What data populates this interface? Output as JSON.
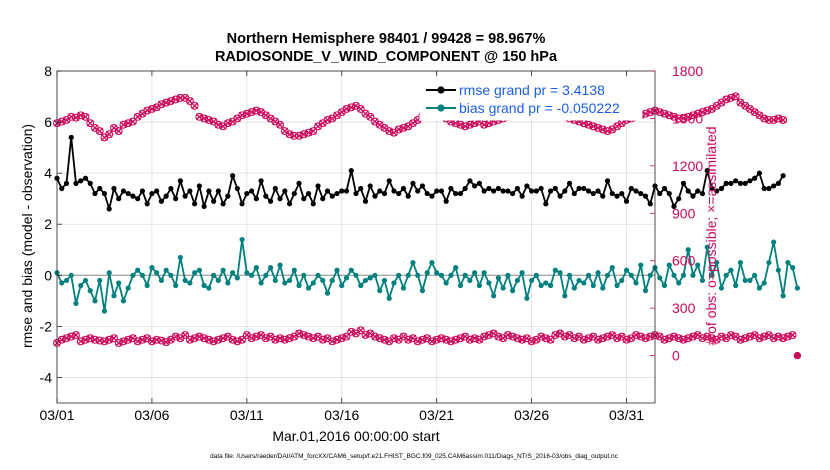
{
  "chart_data": {
    "type": "line",
    "title_line1": "Northern Hemisphere 98401 / 99428 = 98.967%",
    "title_line2": "RADIOSONDE_V_WIND_COMPONENT @ 150 hPa",
    "xlabel": "Mar.01,2016 00:00:00 start",
    "ylabel_left": "rmse and bias (model - observation)",
    "ylabel_right": "# of obs: o=possible; ×=assimilated",
    "footer": "data file: /Users/raeder/DAI/ATM_forcXX/CAM6_setup/f.e21.FHIST_BGC.f09_025.CAM6assim.011/Diags_NTrS_2016-03/obs_diag_output.nc",
    "xlim": [
      0,
      31.5
    ],
    "ylim_left": [
      -5,
      8
    ],
    "ylim_right": [
      -300,
      1800
    ],
    "x_ticks": [
      0,
      5,
      10,
      15,
      20,
      25,
      30
    ],
    "x_tick_labels": [
      "03/01",
      "03/06",
      "03/11",
      "03/16",
      "03/21",
      "03/26",
      "03/31"
    ],
    "y_left_ticks": [
      "-4",
      "-2",
      "0",
      "2",
      "4",
      "6",
      "8"
    ],
    "y_right_ticks": [
      "0",
      "300",
      "600",
      "900",
      "1200",
      "1500",
      "1800"
    ],
    "legend": [
      {
        "label": "rmse grand pr = 3.4138",
        "color": "#000000"
      },
      {
        "label": "bias grand pr = -0.050222",
        "color": "#00807f"
      }
    ],
    "colors": {
      "rmse": "#000000",
      "bias": "#00807f",
      "obs": "#cc0a5c",
      "zero_line": "#aaaaaa"
    },
    "series": [
      {
        "name": "rmse",
        "axis": "left",
        "values": [
          3.8,
          3.4,
          3.6,
          5.4,
          3.6,
          3.7,
          3.8,
          3.6,
          3.2,
          3.4,
          3.2,
          2.6,
          3.4,
          3.0,
          3.3,
          3.2,
          3.1,
          3.0,
          3.3,
          2.8,
          3.2,
          3.3,
          2.9,
          3.1,
          3.4,
          3.0,
          3.7,
          3.1,
          3.3,
          2.8,
          3.5,
          2.7,
          3.3,
          2.9,
          3.3,
          2.8,
          3.1,
          3.9,
          3.4,
          2.8,
          3.2,
          3.3,
          3.0,
          3.7,
          3.1,
          2.9,
          3.4,
          3.0,
          3.3,
          2.8,
          3.2,
          3.6,
          3.0,
          3.2,
          2.8,
          3.5,
          3.0,
          3.3,
          3.1,
          3.2,
          3.3,
          3.3,
          4.1,
          3.2,
          3.4,
          2.9,
          3.5,
          3.1,
          3.3,
          3.2,
          3.7,
          3.3,
          3.2,
          3.4,
          3.1,
          3.6,
          3.3,
          3.5,
          3.2,
          3.1,
          3.3,
          3.3,
          2.9,
          3.4,
          3.2,
          3.2,
          3.4,
          3.7,
          3.5,
          3.6,
          3.3,
          3.4,
          3.3,
          3.4,
          3.3,
          3.3,
          3.2,
          3.4,
          3.1,
          3.5,
          3.3,
          3.3,
          3.4,
          2.8,
          3.3,
          3.4,
          3.1,
          3.3,
          3.6,
          3.2,
          3.4,
          3.4,
          3.3,
          3.2,
          3.3,
          3.1,
          3.7,
          3.2,
          3.1,
          3.2,
          2.9,
          3.4,
          3.3,
          3.2,
          3.1,
          2.8,
          3.5,
          3.2,
          3.4,
          3.2,
          2.7,
          3.0,
          3.6,
          3.3,
          3.1,
          3.3,
          3.2,
          4.1,
          3.4,
          3.3,
          3.4,
          3.6,
          3.6,
          3.7,
          3.6,
          3.6,
          3.7,
          3.8,
          4.0,
          3.4,
          3.4,
          3.5,
          3.6,
          3.9
        ]
      },
      {
        "name": "bias",
        "axis": "left",
        "values": [
          0.1,
          -0.3,
          -0.2,
          0.0,
          -1.1,
          -0.4,
          -0.2,
          -0.6,
          -1.0,
          -0.2,
          -1.4,
          0.1,
          -0.8,
          -0.3,
          -1.0,
          -0.5,
          0.0,
          0.2,
          0.0,
          -0.4,
          0.3,
          0.1,
          -0.2,
          0.2,
          0.0,
          -0.4,
          0.7,
          -0.2,
          -0.3,
          0.1,
          0.2,
          -0.4,
          -0.5,
          0.0,
          -0.2,
          0.2,
          -0.3,
          0.1,
          -0.1,
          1.4,
          0.1,
          0.0,
          0.3,
          -0.3,
          0.0,
          0.3,
          -0.2,
          0.4,
          -0.3,
          -0.2,
          0.2,
          -0.4,
          0.0,
          -0.5,
          -0.3,
          0.0,
          -0.2,
          -0.7,
          -0.2,
          0.2,
          -0.4,
          -0.1,
          0.2,
          0.0,
          -0.4,
          -0.2,
          -0.1,
          0.0,
          -0.6,
          -0.2,
          -0.9,
          -0.3,
          0.0,
          -0.5,
          0.0,
          0.5,
          0.0,
          -0.6,
          0.1,
          0.5,
          0.1,
          0.0,
          -0.3,
          0.0,
          0.3,
          -0.4,
          0.0,
          -0.2,
          0.1,
          -0.4,
          0.1,
          -0.3,
          -0.8,
          -0.1,
          -0.5,
          0.0,
          -0.6,
          -0.2,
          0.1,
          -0.9,
          -0.2,
          0.0,
          -0.4,
          -0.3,
          -0.4,
          0.2,
          0.1,
          -0.8,
          0.0,
          -0.5,
          -0.2,
          -0.3,
          0.0,
          -0.4,
          0.1,
          -0.5,
          0.0,
          0.3,
          -0.4,
          -0.2,
          0.2,
          0.0,
          -0.3,
          0.4,
          -0.6,
          0.0,
          0.3,
          -0.1,
          -0.4,
          0.4,
          0.0,
          -0.3,
          0.0,
          1.0,
          0.0,
          0.4,
          -0.2,
          1.1,
          0.0,
          0.5,
          -0.5,
          0.0,
          0.2,
          -0.4,
          0.5,
          -0.2,
          -0.2,
          0.0,
          -0.5,
          -0.3,
          0.5,
          1.3,
          0.2,
          -0.8,
          0.5,
          0.3,
          -0.5
        ]
      },
      {
        "name": "obs_possible",
        "axis": "right",
        "values": [
          1470,
          1480,
          1490,
          1510,
          1505,
          1520,
          1510,
          1470,
          1440,
          1420,
          1380,
          1400,
          1440,
          1420,
          1460,
          1470,
          1480,
          1510,
          1530,
          1550,
          1560,
          1570,
          1590,
          1600,
          1610,
          1620,
          1630,
          1630,
          1610,
          1580,
          1510,
          1500,
          1490,
          1480,
          1460,
          1450,
          1470,
          1480,
          1500,
          1520,
          1530,
          1540,
          1550,
          1540,
          1520,
          1500,
          1480,
          1460,
          1420,
          1400,
          1390,
          1390,
          1400,
          1410,
          1420,
          1450,
          1470,
          1490,
          1500,
          1520,
          1540,
          1560,
          1570,
          1580,
          1560,
          1530,
          1510,
          1480,
          1460,
          1440,
          1420,
          1410,
          1430,
          1440,
          1450,
          1470,
          1490,
          1520,
          1540,
          1560,
          1540,
          1520,
          1500,
          1480,
          1470,
          1460,
          1450,
          1460,
          1470,
          1480,
          1460,
          1470,
          1480,
          1490,
          1500,
          1510,
          1520,
          1530,
          1540,
          1560,
          1560,
          1570,
          1580,
          1560,
          1540,
          1530,
          1520,
          1510,
          1500,
          1490,
          1480,
          1470,
          1460,
          1450,
          1440,
          1430,
          1420,
          1430,
          1450,
          1470,
          1490,
          1500,
          1510,
          1520,
          1530,
          1540,
          1550,
          1540,
          1530,
          1520,
          1510,
          1500,
          1500,
          1510,
          1520,
          1530,
          1540,
          1550,
          1560,
          1580,
          1600,
          1620,
          1630,
          1640,
          1600,
          1580,
          1560,
          1540,
          1520,
          1500,
          1490,
          1490,
          1500,
          1490
        ]
      },
      {
        "name": "obs_assimilated",
        "axis": "right",
        "values": [
          1470,
          1480,
          1490,
          1510,
          1505,
          1520,
          1510,
          1470,
          1440,
          1420,
          1380,
          1400,
          1440,
          1420,
          1460,
          1470,
          1480,
          1510,
          1530,
          1550,
          1560,
          1570,
          1590,
          1600,
          1610,
          1620,
          1630,
          1630,
          1610,
          1580,
          1510,
          1500,
          1490,
          1480,
          1460,
          1450,
          1470,
          1480,
          1500,
          1520,
          1530,
          1540,
          1550,
          1540,
          1520,
          1500,
          1480,
          1460,
          1420,
          1400,
          1390,
          1390,
          1400,
          1410,
          1420,
          1450,
          1470,
          1490,
          1500,
          1520,
          1540,
          1560,
          1570,
          1580,
          1560,
          1530,
          1510,
          1480,
          1460,
          1440,
          1420,
          1410,
          1430,
          1440,
          1450,
          1470,
          1490,
          1520,
          1540,
          1560,
          1540,
          1520,
          1500,
          1480,
          1470,
          1460,
          1450,
          1460,
          1470,
          1480,
          1460,
          1470,
          1480,
          1490,
          1500,
          1510,
          1520,
          1530,
          1540,
          1560,
          1560,
          1570,
          1580,
          1560,
          1540,
          1530,
          1520,
          1510,
          1500,
          1490,
          1480,
          1470,
          1460,
          1450,
          1440,
          1430,
          1420,
          1430,
          1450,
          1470,
          1490,
          1500,
          1510,
          1520,
          1530,
          1540,
          1550,
          1540,
          1530,
          1520,
          1510,
          1500,
          1500,
          1510,
          1520,
          1530,
          1540,
          1550,
          1560,
          1580,
          1600,
          1620,
          1630,
          1640,
          1600,
          1580,
          1560,
          1540,
          1520,
          1500,
          1490,
          1490,
          1500,
          1490
        ]
      },
      {
        "name": "obs_possible_low",
        "axis": "right",
        "values": [
          80,
          100,
          110,
          120,
          130,
          90,
          100,
          110,
          100,
          95,
          90,
          100,
          110,
          80,
          90,
          100,
          110,
          90,
          100,
          110,
          90,
          100,
          95,
          85,
          100,
          120,
          110,
          130,
          100,
          110,
          120,
          110,
          100,
          90,
          100,
          110,
          120,
          100,
          90,
          100,
          130,
          110,
          120,
          130,
          110,
          120,
          100,
          110,
          100,
          110,
          120,
          140,
          130,
          120,
          110,
          120,
          100,
          110,
          90,
          100,
          110,
          120,
          150,
          140,
          160,
          130,
          140,
          120,
          110,
          100,
          90,
          110,
          100,
          120,
          100,
          110,
          90,
          100,
          110,
          90,
          100,
          110,
          100,
          90,
          100,
          110,
          120,
          100,
          110,
          100,
          120,
          130,
          140,
          120,
          110,
          130,
          120,
          110,
          100,
          110,
          90,
          100,
          120,
          110,
          100,
          130,
          140,
          120,
          130,
          110,
          120,
          100,
          110,
          120,
          100,
          110,
          120,
          130,
          110,
          120,
          100,
          110,
          130,
          120,
          110,
          120,
          130,
          120,
          100,
          110,
          120,
          110,
          100,
          110,
          120,
          130,
          110,
          120,
          110,
          100,
          120,
          110,
          130,
          120,
          100,
          110,
          120,
          130,
          110,
          120,
          130,
          110,
          120,
          110,
          120,
          130
        ]
      }
    ]
  }
}
